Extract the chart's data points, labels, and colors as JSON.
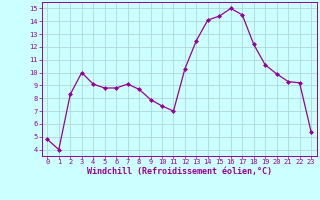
{
  "x": [
    0,
    1,
    2,
    3,
    4,
    5,
    6,
    7,
    8,
    9,
    10,
    11,
    12,
    13,
    14,
    15,
    16,
    17,
    18,
    19,
    20,
    21,
    22,
    23
  ],
  "y": [
    4.8,
    4.0,
    8.3,
    10.0,
    9.1,
    8.8,
    8.8,
    9.1,
    8.7,
    7.9,
    7.4,
    7.0,
    10.3,
    12.5,
    14.1,
    14.4,
    15.0,
    14.5,
    12.2,
    10.6,
    9.9,
    9.3,
    9.2,
    5.4
  ],
  "line_color": "#990099",
  "marker": "D",
  "marker_size": 2,
  "bg_color": "#ccffff",
  "grid_color": "#b0d8d8",
  "xlabel": "Windchill (Refroidissement éolien,°C)",
  "tick_color": "#990099",
  "xlim": [
    -0.5,
    23.5
  ],
  "ylim": [
    3.5,
    15.5
  ],
  "yticks": [
    4,
    5,
    6,
    7,
    8,
    9,
    10,
    11,
    12,
    13,
    14,
    15
  ],
  "xticks": [
    0,
    1,
    2,
    3,
    4,
    5,
    6,
    7,
    8,
    9,
    10,
    11,
    12,
    13,
    14,
    15,
    16,
    17,
    18,
    19,
    20,
    21,
    22,
    23
  ],
  "figsize": [
    3.2,
    2.0
  ],
  "dpi": 100
}
